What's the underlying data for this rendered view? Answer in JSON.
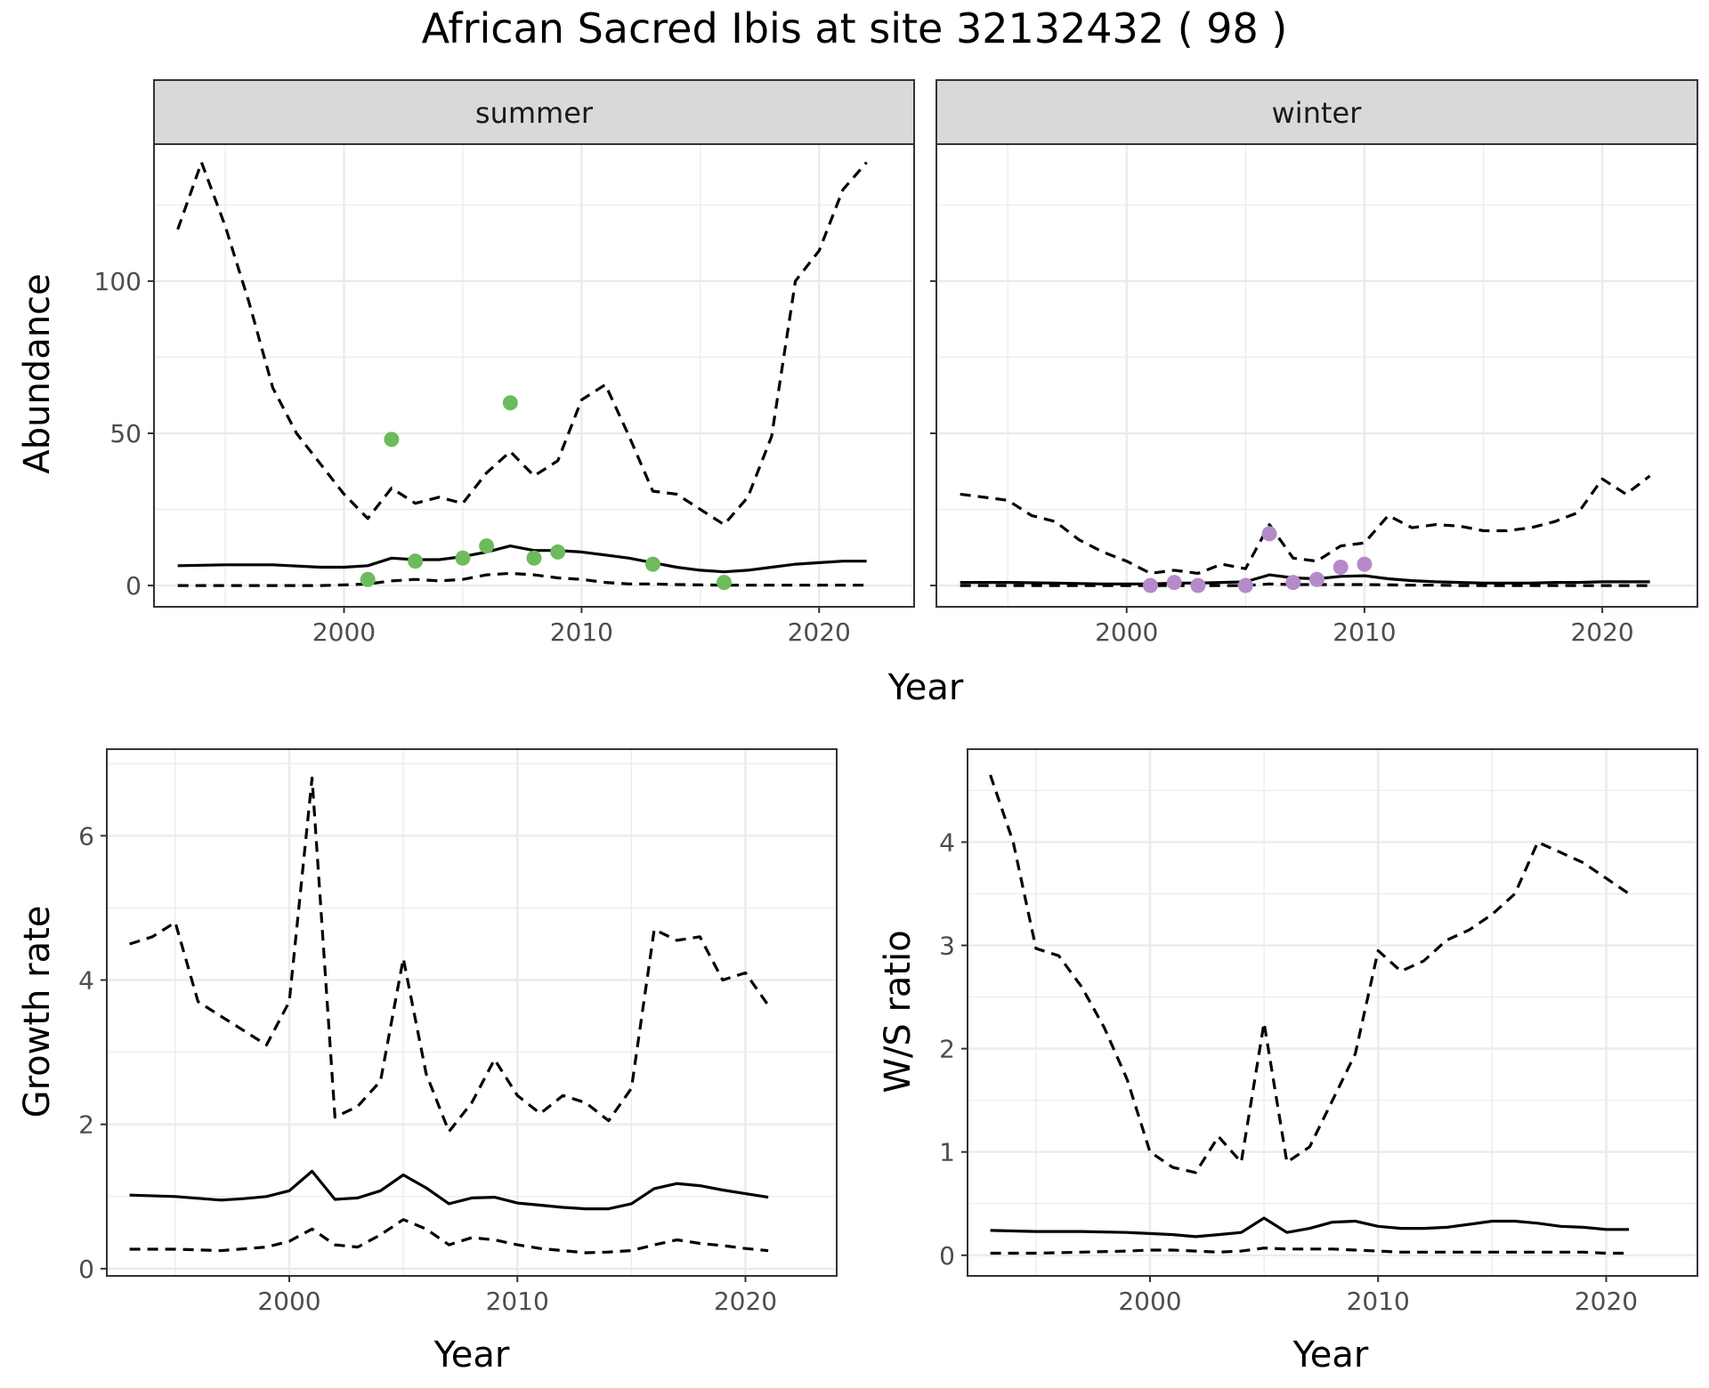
{
  "title": "African Sacred Ibis at site 32132432 ( 98 )",
  "colors": {
    "summer_points": "#6dbb5c",
    "winter_points": "#b58ac8",
    "lines": "#000000",
    "strip_fill": "#d9d9d9",
    "grid": "#ebebeb"
  },
  "chart_data": [
    {
      "type": "line",
      "panel": "summer",
      "xlabel": "Year",
      "ylabel": "Abundance",
      "xlim": [
        1992,
        2024
      ],
      "ylim": [
        -7,
        145
      ],
      "xticks": [
        2000,
        2010,
        2020
      ],
      "yticks": [
        0,
        50,
        100
      ],
      "grid": true,
      "series": [
        {
          "role": "mean",
          "style": "solid",
          "x": [
            1993,
            1995,
            1997,
            1999,
            2000,
            2001,
            2002,
            2003,
            2004,
            2005,
            2006,
            2007,
            2008,
            2009,
            2010,
            2011,
            2012,
            2013,
            2014,
            2015,
            2016,
            2017,
            2018,
            2019,
            2020,
            2021,
            2022
          ],
          "y": [
            6.5,
            6.8,
            6.8,
            6,
            6,
            6.5,
            9,
            8.5,
            8.5,
            9.5,
            11,
            13,
            11.5,
            11.5,
            11,
            10,
            9,
            7.5,
            6,
            5,
            4.5,
            5,
            6,
            7,
            7.5,
            8,
            8
          ]
        },
        {
          "role": "upper",
          "style": "dashed",
          "x": [
            1993,
            1994,
            1995,
            1996,
            1997,
            1998,
            1999,
            2000,
            2001,
            2002,
            2003,
            2004,
            2005,
            2006,
            2007,
            2008,
            2009,
            2010,
            2011,
            2012,
            2013,
            2014,
            2015,
            2016,
            2017,
            2018,
            2019,
            2020,
            2021,
            2022
          ],
          "y": [
            117,
            139,
            118,
            93,
            65,
            50,
            40,
            30,
            22,
            32,
            27,
            29,
            27,
            37,
            44,
            36,
            41,
            61,
            66,
            49,
            31,
            30,
            25,
            20,
            29,
            49,
            100,
            110,
            130,
            139
          ]
        },
        {
          "role": "lower",
          "style": "dashed",
          "x": [
            1993,
            1995,
            1997,
            1999,
            2000,
            2001,
            2002,
            2003,
            2004,
            2005,
            2006,
            2007,
            2008,
            2009,
            2010,
            2011,
            2012,
            2013,
            2014,
            2015,
            2016,
            2017,
            2018,
            2019,
            2020,
            2021,
            2022
          ],
          "y": [
            0,
            0,
            0,
            0,
            0.2,
            0.5,
            1.5,
            2,
            1.5,
            2,
            3.5,
            4,
            3.5,
            2.5,
            2,
            1,
            0.5,
            0.5,
            0.3,
            0.2,
            0.1,
            0.1,
            0.1,
            0.1,
            0.1,
            0.1,
            0.1
          ]
        }
      ],
      "points": {
        "x": [
          2001,
          2002,
          2003,
          2005,
          2006,
          2007,
          2008,
          2009,
          2013,
          2016
        ],
        "y": [
          2,
          48,
          8,
          9,
          13,
          60,
          9,
          11,
          7,
          1
        ]
      }
    },
    {
      "type": "line",
      "panel": "winter",
      "xlabel": "Year",
      "ylabel": "Abundance",
      "xlim": [
        1992,
        2024
      ],
      "ylim": [
        -7,
        145
      ],
      "xticks": [
        2000,
        2010,
        2020
      ],
      "yticks": [
        0,
        50,
        100
      ],
      "grid": true,
      "series": [
        {
          "role": "mean",
          "style": "solid",
          "x": [
            1993,
            1995,
            1997,
            1999,
            2000,
            2001,
            2002,
            2003,
            2004,
            2005,
            2006,
            2007,
            2008,
            2009,
            2010,
            2011,
            2012,
            2013,
            2014,
            2015,
            2016,
            2017,
            2018,
            2019,
            2020,
            2021,
            2022
          ],
          "y": [
            1,
            1,
            0.8,
            0.5,
            0.5,
            0.5,
            0.8,
            0.8,
            1,
            1.2,
            3.5,
            2.5,
            2.2,
            3,
            3.2,
            2.2,
            1.6,
            1.2,
            1,
            0.8,
            0.8,
            0.8,
            1,
            1,
            1.2,
            1.2,
            1.2
          ]
        },
        {
          "role": "upper",
          "style": "dashed",
          "x": [
            1993,
            1995,
            1996,
            1997,
            1998,
            1999,
            2000,
            2001,
            2002,
            2003,
            2004,
            2005,
            2006,
            2007,
            2008,
            2009,
            2010,
            2011,
            2012,
            2013,
            2014,
            2015,
            2016,
            2017,
            2018,
            2019,
            2020,
            2021,
            2022
          ],
          "y": [
            30,
            28,
            23,
            21,
            15,
            11,
            8,
            4,
            5,
            4,
            7,
            5.5,
            20,
            9,
            8,
            13,
            14,
            23,
            19,
            20,
            19.5,
            18,
            18,
            19,
            21,
            24,
            35,
            30,
            36
          ]
        },
        {
          "role": "lower",
          "style": "dashed",
          "x": [
            1993,
            1995,
            1997,
            1999,
            2000,
            2001,
            2002,
            2003,
            2004,
            2005,
            2006,
            2007,
            2008,
            2009,
            2010,
            2011,
            2012,
            2013,
            2014,
            2015,
            2016,
            2017,
            2018,
            2019,
            2020,
            2021,
            2022
          ],
          "y": [
            0,
            0,
            0,
            0,
            0,
            0,
            0,
            0,
            0,
            0,
            0.5,
            0.3,
            0.3,
            0.3,
            0.3,
            0.2,
            0.1,
            0.1,
            0,
            0,
            0,
            0,
            0,
            0,
            0,
            0,
            0
          ]
        }
      ],
      "points": {
        "x": [
          2001,
          2002,
          2003,
          2005,
          2006,
          2007,
          2008,
          2009,
          2010
        ],
        "y": [
          0,
          1,
          0,
          0,
          17,
          1,
          2,
          6,
          7
        ]
      }
    },
    {
      "type": "line",
      "panel": "growth",
      "xlabel": "Year",
      "ylabel": "Growth rate",
      "xlim": [
        1992,
        2024
      ],
      "ylim": [
        -0.1,
        7.2
      ],
      "xticks": [
        2000,
        2010,
        2020
      ],
      "yticks": [
        0,
        2,
        4,
        6
      ],
      "grid": true,
      "series": [
        {
          "role": "mean",
          "style": "solid",
          "x": [
            1993,
            1995,
            1997,
            1998,
            1999,
            2000,
            2001,
            2002,
            2003,
            2004,
            2005,
            2006,
            2007,
            2008,
            2009,
            2010,
            2011,
            2012,
            2013,
            2014,
            2015,
            2016,
            2017,
            2018,
            2019,
            2020,
            2021
          ],
          "y": [
            1.02,
            1,
            0.95,
            0.97,
            1,
            1.08,
            1.35,
            0.96,
            0.98,
            1.08,
            1.3,
            1.12,
            0.9,
            0.98,
            0.99,
            0.91,
            0.88,
            0.85,
            0.83,
            0.83,
            0.9,
            1.11,
            1.18,
            1.15,
            1.09,
            1.04,
            0.99
          ]
        },
        {
          "role": "upper",
          "style": "dashed",
          "x": [
            1993,
            1994,
            1995,
            1996,
            1997,
            1998,
            1999,
            2000,
            2001,
            2002,
            2003,
            2004,
            2005,
            2006,
            2007,
            2008,
            2009,
            2010,
            2011,
            2012,
            2013,
            2014,
            2015,
            2016,
            2017,
            2018,
            2019,
            2020,
            2021
          ],
          "y": [
            4.5,
            4.6,
            4.8,
            3.7,
            3.5,
            3.3,
            3.1,
            3.7,
            6.8,
            2.1,
            2.25,
            2.6,
            4.3,
            2.7,
            1.9,
            2.3,
            2.9,
            2.4,
            2.15,
            2.4,
            2.3,
            2.05,
            2.5,
            4.7,
            4.55,
            4.6,
            4.0,
            4.1,
            3.65
          ]
        },
        {
          "role": "lower",
          "style": "dashed",
          "x": [
            1993,
            1995,
            1997,
            1999,
            2000,
            2001,
            2002,
            2003,
            2004,
            2005,
            2006,
            2007,
            2008,
            2009,
            2010,
            2011,
            2012,
            2013,
            2014,
            2015,
            2016,
            2017,
            2018,
            2019,
            2020,
            2021
          ],
          "y": [
            0.27,
            0.27,
            0.25,
            0.3,
            0.38,
            0.55,
            0.33,
            0.3,
            0.47,
            0.68,
            0.55,
            0.33,
            0.43,
            0.4,
            0.33,
            0.28,
            0.25,
            0.22,
            0.23,
            0.25,
            0.33,
            0.4,
            0.35,
            0.32,
            0.28,
            0.25
          ]
        }
      ]
    },
    {
      "type": "line",
      "panel": "ws_ratio",
      "xlabel": "Year",
      "ylabel": "W/S ratio",
      "xlim": [
        1992,
        2024
      ],
      "ylim": [
        -0.2,
        4.9
      ],
      "xticks": [
        2000,
        2010,
        2020
      ],
      "yticks": [
        0,
        1,
        2,
        3,
        4
      ],
      "grid": true,
      "series": [
        {
          "role": "mean",
          "style": "solid",
          "x": [
            1993,
            1995,
            1997,
            1999,
            2000,
            2001,
            2002,
            2003,
            2004,
            2005,
            2006,
            2007,
            2008,
            2009,
            2010,
            2011,
            2012,
            2013,
            2014,
            2015,
            2016,
            2017,
            2018,
            2019,
            2020,
            2021
          ],
          "y": [
            0.24,
            0.23,
            0.23,
            0.22,
            0.21,
            0.2,
            0.18,
            0.2,
            0.22,
            0.36,
            0.22,
            0.26,
            0.32,
            0.33,
            0.28,
            0.26,
            0.26,
            0.27,
            0.3,
            0.33,
            0.33,
            0.31,
            0.28,
            0.27,
            0.25,
            0.25
          ]
        },
        {
          "role": "upper",
          "style": "dashed",
          "x": [
            1993,
            1994,
            1995,
            1996,
            1997,
            1998,
            1999,
            2000,
            2001,
            2002,
            2003,
            2004,
            2005,
            2006,
            2007,
            2008,
            2009,
            2010,
            2011,
            2012,
            2013,
            2014,
            2015,
            2016,
            2017,
            2018,
            2019,
            2020,
            2021
          ],
          "y": [
            4.65,
            4.0,
            2.97,
            2.9,
            2.6,
            2.2,
            1.7,
            1.0,
            0.85,
            0.8,
            1.15,
            0.9,
            2.25,
            0.9,
            1.05,
            1.5,
            1.95,
            2.95,
            2.75,
            2.85,
            3.05,
            3.15,
            3.3,
            3.5,
            4.0,
            3.9,
            3.8,
            3.65,
            3.5
          ]
        },
        {
          "role": "lower",
          "style": "dashed",
          "x": [
            1993,
            1995,
            1997,
            1999,
            2000,
            2001,
            2002,
            2003,
            2004,
            2005,
            2006,
            2007,
            2008,
            2009,
            2010,
            2011,
            2012,
            2013,
            2014,
            2015,
            2016,
            2017,
            2018,
            2019,
            2020,
            2021
          ],
          "y": [
            0.02,
            0.02,
            0.03,
            0.04,
            0.05,
            0.05,
            0.04,
            0.03,
            0.04,
            0.07,
            0.06,
            0.06,
            0.06,
            0.05,
            0.04,
            0.03,
            0.03,
            0.03,
            0.03,
            0.03,
            0.03,
            0.03,
            0.03,
            0.03,
            0.02,
            0.02
          ]
        }
      ]
    }
  ],
  "strips": {
    "summer": "summer",
    "winter": "winter"
  },
  "labels": {
    "top_xlabel": "Year",
    "top_ylabel": "Abundance",
    "growth_xlabel": "Year",
    "growth_ylabel": "Growth rate",
    "ratio_xlabel": "Year",
    "ratio_ylabel": "W/S ratio"
  }
}
